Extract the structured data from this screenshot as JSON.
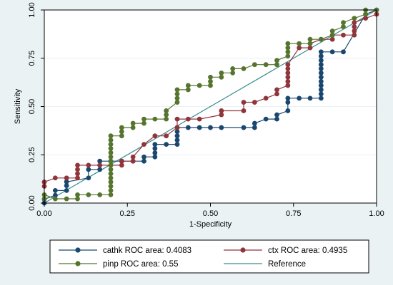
{
  "chart_data": {
    "type": "line",
    "title": "",
    "xlabel": "1-Specificity",
    "ylabel": "Sensitivity",
    "xlim": [
      0,
      1
    ],
    "ylim": [
      0,
      1
    ],
    "xticks": [
      0,
      0.25,
      0.5,
      0.75,
      1
    ],
    "xtick_labels": [
      "0.00",
      "0.25",
      "0.50",
      "0.75",
      "1.00"
    ],
    "yticks": [
      0,
      0.25,
      0.5,
      0.75,
      1
    ],
    "ytick_labels": [
      "0.00",
      "0.25",
      "0.50",
      "0.75",
      "1.00"
    ],
    "grid": "horizontal",
    "legend_position": "bottom",
    "background": "#eaf2f3",
    "plot_background": "#ffffff",
    "series": [
      {
        "name": "cathk ROC area: 0.4083",
        "color": "#1a476f",
        "marker": "circle",
        "points": [
          [
            0,
            0
          ],
          [
            0,
            0.02
          ],
          [
            0.033,
            0.04
          ],
          [
            0.033,
            0.065
          ],
          [
            0.067,
            0.065
          ],
          [
            0.067,
            0.09
          ],
          [
            0.067,
            0.11
          ],
          [
            0.133,
            0.13
          ],
          [
            0.133,
            0.174
          ],
          [
            0.167,
            0.174
          ],
          [
            0.167,
            0.196
          ],
          [
            0.167,
            0.217
          ],
          [
            0.2,
            0.217
          ],
          [
            0.233,
            0.217
          ],
          [
            0.267,
            0.217
          ],
          [
            0.3,
            0.217
          ],
          [
            0.3,
            0.239
          ],
          [
            0.333,
            0.239
          ],
          [
            0.333,
            0.26
          ],
          [
            0.333,
            0.283
          ],
          [
            0.333,
            0.304
          ],
          [
            0.367,
            0.304
          ],
          [
            0.4,
            0.304
          ],
          [
            0.4,
            0.326
          ],
          [
            0.4,
            0.348
          ],
          [
            0.4,
            0.37
          ],
          [
            0.4,
            0.391
          ],
          [
            0.433,
            0.391
          ],
          [
            0.467,
            0.391
          ],
          [
            0.5,
            0.391
          ],
          [
            0.533,
            0.391
          ],
          [
            0.6,
            0.391
          ],
          [
            0.633,
            0.391
          ],
          [
            0.633,
            0.413
          ],
          [
            0.667,
            0.435
          ],
          [
            0.7,
            0.435
          ],
          [
            0.7,
            0.457
          ],
          [
            0.733,
            0.478
          ],
          [
            0.733,
            0.522
          ],
          [
            0.733,
            0.543
          ],
          [
            0.767,
            0.543
          ],
          [
            0.8,
            0.543
          ],
          [
            0.833,
            0.543
          ],
          [
            0.833,
            0.565
          ],
          [
            0.833,
            0.587
          ],
          [
            0.833,
            0.609
          ],
          [
            0.833,
            0.63
          ],
          [
            0.833,
            0.652
          ],
          [
            0.833,
            0.674
          ],
          [
            0.833,
            0.696
          ],
          [
            0.833,
            0.717
          ],
          [
            0.833,
            0.739
          ],
          [
            0.833,
            0.761
          ],
          [
            0.833,
            0.783
          ],
          [
            0.867,
            0.783
          ],
          [
            0.9,
            0.783
          ],
          [
            0.967,
            0.978
          ],
          [
            1,
            1
          ]
        ]
      },
      {
        "name": "ctx ROC area: 0.4935",
        "color": "#90353b",
        "marker": "circle",
        "points": [
          [
            0,
            0.087
          ],
          [
            0,
            0.109
          ],
          [
            0.033,
            0.13
          ],
          [
            0.067,
            0.13
          ],
          [
            0.1,
            0.13
          ],
          [
            0.1,
            0.152
          ],
          [
            0.1,
            0.174
          ],
          [
            0.1,
            0.196
          ],
          [
            0.133,
            0.196
          ],
          [
            0.167,
            0.196
          ],
          [
            0.2,
            0.196
          ],
          [
            0.233,
            0.196
          ],
          [
            0.233,
            0.217
          ],
          [
            0.267,
            0.217
          ],
          [
            0.267,
            0.239
          ],
          [
            0.3,
            0.304
          ],
          [
            0.333,
            0.348
          ],
          [
            0.367,
            0.348
          ],
          [
            0.4,
            0.391
          ],
          [
            0.4,
            0.435
          ],
          [
            0.433,
            0.435
          ],
          [
            0.467,
            0.435
          ],
          [
            0.533,
            0.457
          ],
          [
            0.533,
            0.478
          ],
          [
            0.6,
            0.478
          ],
          [
            0.6,
            0.522
          ],
          [
            0.633,
            0.522
          ],
          [
            0.667,
            0.543
          ],
          [
            0.7,
            0.565
          ],
          [
            0.7,
            0.587
          ],
          [
            0.733,
            0.609
          ],
          [
            0.733,
            0.63
          ],
          [
            0.733,
            0.652
          ],
          [
            0.733,
            0.674
          ],
          [
            0.733,
            0.696
          ],
          [
            0.733,
            0.717
          ],
          [
            0.767,
            0.804
          ],
          [
            0.8,
            0.804
          ],
          [
            0.8,
            0.826
          ],
          [
            0.833,
            0.848
          ],
          [
            0.867,
            0.848
          ],
          [
            0.867,
            0.87
          ],
          [
            0.9,
            0.87
          ],
          [
            0.933,
            0.87
          ],
          [
            0.933,
            0.891
          ],
          [
            0.933,
            0.913
          ],
          [
            0.933,
            0.935
          ],
          [
            0.967,
            0.957
          ],
          [
            1,
            0.978
          ]
        ]
      },
      {
        "name": "pinp ROC area: 0.55",
        "color": "#55752f",
        "marker": "circle",
        "points": [
          [
            0,
            0.022
          ],
          [
            0,
            0.043
          ],
          [
            0.033,
            0.022
          ],
          [
            0.067,
            0.022
          ],
          [
            0.1,
            0.022
          ],
          [
            0.1,
            0.043
          ],
          [
            0.133,
            0.043
          ],
          [
            0.167,
            0.043
          ],
          [
            0.2,
            0.043
          ],
          [
            0.2,
            0.065
          ],
          [
            0.2,
            0.087
          ],
          [
            0.2,
            0.109
          ],
          [
            0.2,
            0.13
          ],
          [
            0.2,
            0.152
          ],
          [
            0.2,
            0.174
          ],
          [
            0.2,
            0.196
          ],
          [
            0.2,
            0.217
          ],
          [
            0.2,
            0.239
          ],
          [
            0.2,
            0.261
          ],
          [
            0.2,
            0.283
          ],
          [
            0.2,
            0.304
          ],
          [
            0.2,
            0.326
          ],
          [
            0.2,
            0.348
          ],
          [
            0.233,
            0.348
          ],
          [
            0.233,
            0.37
          ],
          [
            0.233,
            0.391
          ],
          [
            0.267,
            0.391
          ],
          [
            0.267,
            0.413
          ],
          [
            0.3,
            0.413
          ],
          [
            0.3,
            0.435
          ],
          [
            0.333,
            0.435
          ],
          [
            0.367,
            0.435
          ],
          [
            0.367,
            0.457
          ],
          [
            0.367,
            0.478
          ],
          [
            0.4,
            0.522
          ],
          [
            0.4,
            0.543
          ],
          [
            0.4,
            0.565
          ],
          [
            0.4,
            0.587
          ],
          [
            0.433,
            0.587
          ],
          [
            0.433,
            0.609
          ],
          [
            0.467,
            0.609
          ],
          [
            0.5,
            0.609
          ],
          [
            0.5,
            0.63
          ],
          [
            0.5,
            0.652
          ],
          [
            0.533,
            0.652
          ],
          [
            0.533,
            0.674
          ],
          [
            0.567,
            0.674
          ],
          [
            0.567,
            0.696
          ],
          [
            0.6,
            0.696
          ],
          [
            0.633,
            0.717
          ],
          [
            0.667,
            0.717
          ],
          [
            0.7,
            0.717
          ],
          [
            0.7,
            0.739
          ],
          [
            0.733,
            0.761
          ],
          [
            0.733,
            0.783
          ],
          [
            0.733,
            0.804
          ],
          [
            0.733,
            0.826
          ],
          [
            0.767,
            0.826
          ],
          [
            0.8,
            0.826
          ],
          [
            0.8,
            0.848
          ],
          [
            0.833,
            0.848
          ],
          [
            0.867,
            0.87
          ],
          [
            0.867,
            0.891
          ],
          [
            0.9,
            0.913
          ],
          [
            0.9,
            0.935
          ],
          [
            0.933,
            0.957
          ],
          [
            0.967,
            0.978
          ],
          [
            0.967,
            1
          ],
          [
            1,
            1
          ]
        ]
      },
      {
        "name": "Reference",
        "color": "#3a8d8e",
        "marker": "none",
        "points": [
          [
            0,
            0
          ],
          [
            1,
            1
          ]
        ]
      }
    ]
  }
}
